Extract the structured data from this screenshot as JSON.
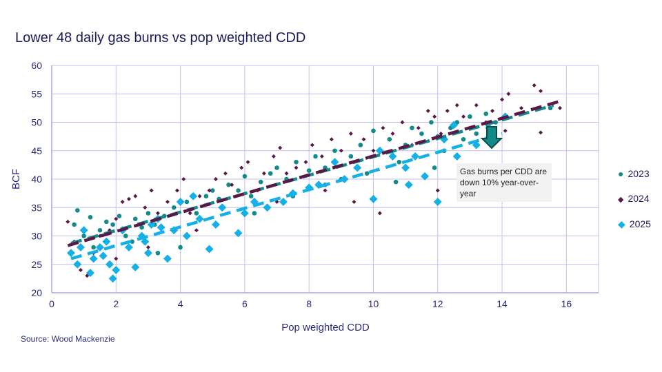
{
  "title": "Lower 48 daily gas burns vs pop weighted CDD",
  "source": "Source: Wood Mackenzie",
  "annotation": "Gas burns per CDD are down 10% year-over-year",
  "chart_data": {
    "type": "scatter",
    "title": "Lower 48 daily gas burns vs pop weighted CDD",
    "xlabel": "Pop weighted CDD",
    "ylabel": "BCF",
    "xlim": [
      0,
      17
    ],
    "ylim": [
      20,
      60
    ],
    "xticks": [
      0,
      2,
      4,
      6,
      8,
      10,
      12,
      14,
      16
    ],
    "yticks": [
      20,
      25,
      30,
      35,
      40,
      45,
      50,
      55,
      60
    ],
    "grid": true,
    "legend": "right",
    "series": [
      {
        "name": "2023",
        "color": "#138a8a",
        "marker": "circle",
        "trend": [
          [
            0.6,
            28.7
          ],
          [
            15.6,
            53
          ]
        ],
        "points": [
          [
            0.8,
            34.5
          ],
          [
            0.7,
            32
          ],
          [
            1,
            30
          ],
          [
            1.2,
            33.3
          ],
          [
            1.5,
            31
          ],
          [
            1.7,
            32.5
          ],
          [
            1.9,
            32
          ],
          [
            2.1,
            33.5
          ],
          [
            2.3,
            30
          ],
          [
            2.6,
            33
          ],
          [
            2.8,
            31.5
          ],
          [
            3,
            34
          ],
          [
            3.2,
            32
          ],
          [
            3.5,
            33.5
          ],
          [
            3.8,
            35
          ],
          [
            4,
            28
          ],
          [
            4.2,
            36
          ],
          [
            4.5,
            34
          ],
          [
            4.8,
            37
          ],
          [
            5,
            38
          ],
          [
            5.2,
            36.5
          ],
          [
            5.5,
            39
          ],
          [
            5.8,
            38
          ],
          [
            6,
            40.5
          ],
          [
            6.2,
            37
          ],
          [
            6.5,
            39.5
          ],
          [
            6.8,
            41
          ],
          [
            7,
            42
          ],
          [
            7.3,
            40
          ],
          [
            7.6,
            43
          ],
          [
            8,
            41.5
          ],
          [
            8.2,
            44
          ],
          [
            8.5,
            42
          ],
          [
            8.8,
            45
          ],
          [
            9,
            40
          ],
          [
            9.3,
            44
          ],
          [
            9.6,
            46
          ],
          [
            10,
            48.5
          ],
          [
            10.2,
            45
          ],
          [
            10.5,
            47
          ],
          [
            10.8,
            43
          ],
          [
            11,
            46
          ],
          [
            11.2,
            49
          ],
          [
            11.5,
            48
          ],
          [
            11.8,
            50
          ],
          [
            12,
            47.5
          ],
          [
            12.2,
            45
          ],
          [
            12.4,
            49
          ],
          [
            12.6,
            50
          ],
          [
            12.8,
            47
          ],
          [
            13,
            51
          ],
          [
            13.2,
            48
          ],
          [
            13.5,
            51.5
          ],
          [
            13.8,
            50
          ],
          [
            15.5,
            52.5
          ],
          [
            1.3,
            28
          ],
          [
            2.5,
            29
          ],
          [
            3.3,
            27
          ],
          [
            5.3,
            35
          ],
          [
            6.3,
            34
          ],
          [
            7.5,
            37
          ],
          [
            8.5,
            39
          ],
          [
            9.8,
            41
          ],
          [
            10.7,
            39.5
          ],
          [
            11.9,
            42
          ]
        ]
      },
      {
        "name": "2024",
        "color": "#5a1846",
        "marker": "diamond-small",
        "trend": [
          [
            0.5,
            28.3
          ],
          [
            15.8,
            53.7
          ]
        ],
        "points": [
          [
            0.5,
            32.5
          ],
          [
            0.7,
            29
          ],
          [
            0.9,
            24
          ],
          [
            1.1,
            23
          ],
          [
            1.3,
            27
          ],
          [
            1.5,
            30
          ],
          [
            1.8,
            31
          ],
          [
            2,
            33
          ],
          [
            2.2,
            36
          ],
          [
            2.4,
            36.5
          ],
          [
            2.6,
            37
          ],
          [
            2.9,
            35
          ],
          [
            3.1,
            38
          ],
          [
            3.3,
            34
          ],
          [
            3.6,
            36
          ],
          [
            3.9,
            38
          ],
          [
            4.1,
            40
          ],
          [
            4.3,
            34
          ],
          [
            4.6,
            37
          ],
          [
            4.9,
            38
          ],
          [
            5.1,
            40
          ],
          [
            5.4,
            41
          ],
          [
            5.6,
            39
          ],
          [
            5.9,
            42
          ],
          [
            6.1,
            43
          ],
          [
            6.4,
            38
          ],
          [
            6.6,
            41
          ],
          [
            6.9,
            44
          ],
          [
            7.1,
            45.5
          ],
          [
            7.3,
            41
          ],
          [
            7.6,
            42
          ],
          [
            7.9,
            43
          ],
          [
            8.1,
            46
          ],
          [
            8.4,
            44
          ],
          [
            8.7,
            47
          ],
          [
            9,
            45
          ],
          [
            9.3,
            48
          ],
          [
            9.4,
            36
          ],
          [
            9.7,
            47
          ],
          [
            10,
            45
          ],
          [
            10.2,
            34
          ],
          [
            10.3,
            49
          ],
          [
            10.6,
            48
          ],
          [
            10.9,
            50
          ],
          [
            11.2,
            46
          ],
          [
            11.4,
            49
          ],
          [
            11.7,
            52
          ],
          [
            11.9,
            51
          ],
          [
            12.1,
            48
          ],
          [
            12.3,
            52
          ],
          [
            12.6,
            53
          ],
          [
            12.8,
            51
          ],
          [
            13,
            49
          ],
          [
            13.2,
            53
          ],
          [
            13.5,
            50
          ],
          [
            13.7,
            52
          ],
          [
            14,
            54
          ],
          [
            14.2,
            55
          ],
          [
            14.6,
            52.5
          ],
          [
            15,
            56.5
          ],
          [
            15.2,
            55.5
          ],
          [
            15.8,
            52.5
          ],
          [
            15.2,
            48.2
          ],
          [
            14.1,
            48.5
          ],
          [
            12,
            38
          ],
          [
            2,
            26
          ],
          [
            3,
            28
          ],
          [
            4.5,
            31
          ],
          [
            7,
            36
          ],
          [
            8.5,
            38
          ]
        ]
      },
      {
        "name": "2025",
        "color": "#16b0e6",
        "marker": "diamond",
        "trend": [
          [
            0.6,
            26
          ],
          [
            14,
            48
          ]
        ],
        "points": [
          [
            0.6,
            27
          ],
          [
            0.8,
            25
          ],
          [
            1,
            31
          ],
          [
            1.2,
            23.5
          ],
          [
            1.3,
            26
          ],
          [
            1.5,
            28
          ],
          [
            1.7,
            29
          ],
          [
            1.8,
            25
          ],
          [
            1.9,
            22.5
          ],
          [
            2,
            24
          ],
          [
            2.2,
            31
          ],
          [
            2.4,
            28
          ],
          [
            2.6,
            24.5
          ],
          [
            2.8,
            30
          ],
          [
            3,
            27
          ],
          [
            3.1,
            32
          ],
          [
            3.3,
            33
          ],
          [
            3.6,
            26
          ],
          [
            3.8,
            31
          ],
          [
            4,
            36
          ],
          [
            4.2,
            30
          ],
          [
            4.4,
            37
          ],
          [
            4.6,
            33
          ],
          [
            4.9,
            27.7
          ],
          [
            5.1,
            32
          ],
          [
            5.3,
            35
          ],
          [
            5.8,
            30.5
          ],
          [
            6,
            34
          ],
          [
            6.3,
            36
          ],
          [
            6.7,
            35
          ],
          [
            7.2,
            36
          ],
          [
            7.5,
            37.5
          ],
          [
            8,
            38.5
          ],
          [
            8.3,
            39
          ],
          [
            8.8,
            43
          ],
          [
            9.1,
            40
          ],
          [
            9.5,
            42
          ],
          [
            10,
            36.5
          ],
          [
            10.2,
            45
          ],
          [
            10.6,
            44
          ],
          [
            11,
            42
          ],
          [
            11.1,
            39
          ],
          [
            11.3,
            44
          ],
          [
            11.6,
            40.5
          ],
          [
            12,
            36
          ],
          [
            12.2,
            47
          ],
          [
            12.6,
            44
          ],
          [
            12.5,
            49.5
          ],
          [
            13.2,
            46
          ],
          [
            13.6,
            49
          ],
          [
            14.1,
            51
          ],
          [
            0.9,
            28
          ],
          [
            1.6,
            26.5
          ],
          [
            2.9,
            29
          ],
          [
            3.4,
            31.5
          ]
        ]
      }
    ]
  }
}
